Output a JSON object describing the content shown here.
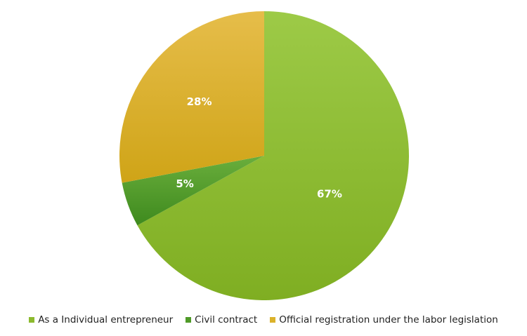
{
  "chart_data": {
    "type": "pie",
    "title": "",
    "categories": [
      "As a Individual entrepreneur",
      "Civil contract",
      "Official registration under the labor legislation"
    ],
    "values": [
      67,
      5,
      28
    ],
    "value_labels": [
      "67%",
      "5%",
      "28%"
    ],
    "colors": [
      "#8cba2e",
      "#4f9a28",
      "#dbb22a"
    ],
    "legend_position": "bottom"
  }
}
